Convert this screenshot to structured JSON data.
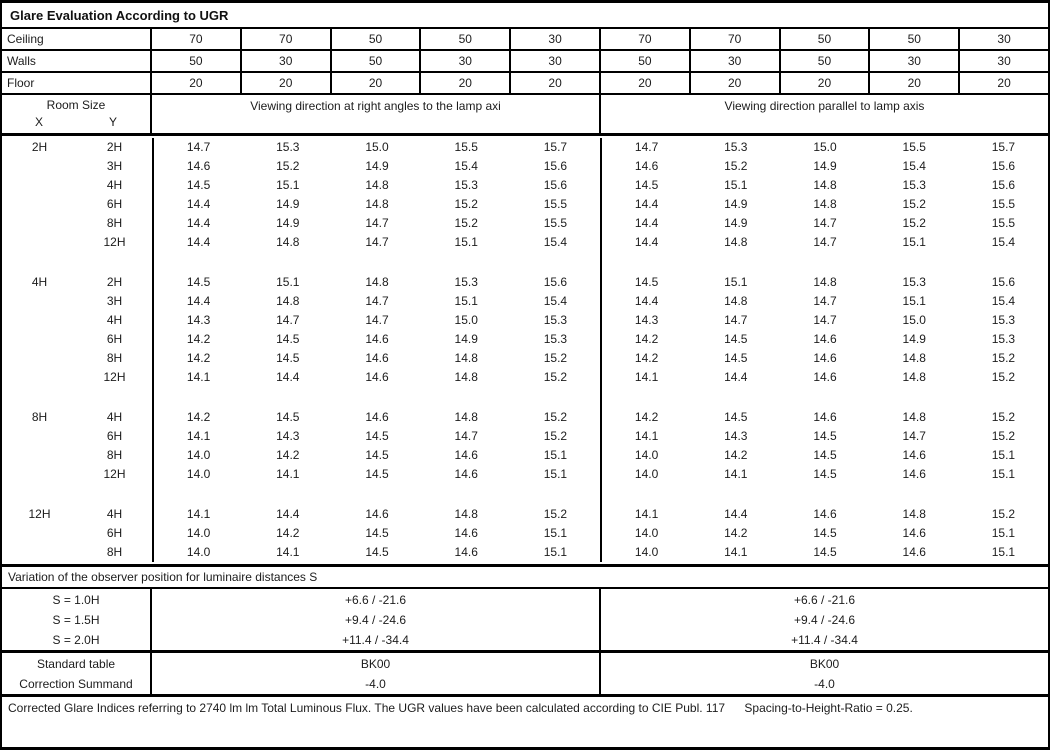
{
  "title": "Glare Evaluation According to UGR",
  "surface_rows": [
    {
      "label": "Ceiling",
      "values": [
        "70",
        "70",
        "50",
        "50",
        "30",
        "70",
        "70",
        "50",
        "50",
        "30"
      ]
    },
    {
      "label": "Walls",
      "values": [
        "50",
        "30",
        "50",
        "30",
        "30",
        "50",
        "30",
        "50",
        "30",
        "30"
      ]
    },
    {
      "label": "Floor",
      "values": [
        "20",
        "20",
        "20",
        "20",
        "20",
        "20",
        "20",
        "20",
        "20",
        "20"
      ]
    }
  ],
  "header": {
    "room_size": "Room Size",
    "x_label": "X",
    "y_label": "Y",
    "left_heading": "Viewing direction at right angles to the lamp axi",
    "right_heading": "Viewing direction parallel to lamp axis"
  },
  "ugr_groups": [
    {
      "x": "2H",
      "rows": [
        {
          "y": "2H",
          "left": [
            "14.7",
            "15.3",
            "15.0",
            "15.5",
            "15.7"
          ],
          "right": [
            "14.7",
            "15.3",
            "15.0",
            "15.5",
            "15.7"
          ]
        },
        {
          "y": "3H",
          "left": [
            "14.6",
            "15.2",
            "14.9",
            "15.4",
            "15.6"
          ],
          "right": [
            "14.6",
            "15.2",
            "14.9",
            "15.4",
            "15.6"
          ]
        },
        {
          "y": "4H",
          "left": [
            "14.5",
            "15.1",
            "14.8",
            "15.3",
            "15.6"
          ],
          "right": [
            "14.5",
            "15.1",
            "14.8",
            "15.3",
            "15.6"
          ]
        },
        {
          "y": "6H",
          "left": [
            "14.4",
            "14.9",
            "14.8",
            "15.2",
            "15.5"
          ],
          "right": [
            "14.4",
            "14.9",
            "14.8",
            "15.2",
            "15.5"
          ]
        },
        {
          "y": "8H",
          "left": [
            "14.4",
            "14.9",
            "14.7",
            "15.2",
            "15.5"
          ],
          "right": [
            "14.4",
            "14.9",
            "14.7",
            "15.2",
            "15.5"
          ]
        },
        {
          "y": "12H",
          "left": [
            "14.4",
            "14.8",
            "14.7",
            "15.1",
            "15.4"
          ],
          "right": [
            "14.4",
            "14.8",
            "14.7",
            "15.1",
            "15.4"
          ]
        }
      ]
    },
    {
      "x": "4H",
      "rows": [
        {
          "y": "2H",
          "left": [
            "14.5",
            "15.1",
            "14.8",
            "15.3",
            "15.6"
          ],
          "right": [
            "14.5",
            "15.1",
            "14.8",
            "15.3",
            "15.6"
          ]
        },
        {
          "y": "3H",
          "left": [
            "14.4",
            "14.8",
            "14.7",
            "15.1",
            "15.4"
          ],
          "right": [
            "14.4",
            "14.8",
            "14.7",
            "15.1",
            "15.4"
          ]
        },
        {
          "y": "4H",
          "left": [
            "14.3",
            "14.7",
            "14.7",
            "15.0",
            "15.3"
          ],
          "right": [
            "14.3",
            "14.7",
            "14.7",
            "15.0",
            "15.3"
          ]
        },
        {
          "y": "6H",
          "left": [
            "14.2",
            "14.5",
            "14.6",
            "14.9",
            "15.3"
          ],
          "right": [
            "14.2",
            "14.5",
            "14.6",
            "14.9",
            "15.3"
          ]
        },
        {
          "y": "8H",
          "left": [
            "14.2",
            "14.5",
            "14.6",
            "14.8",
            "15.2"
          ],
          "right": [
            "14.2",
            "14.5",
            "14.6",
            "14.8",
            "15.2"
          ]
        },
        {
          "y": "12H",
          "left": [
            "14.1",
            "14.4",
            "14.6",
            "14.8",
            "15.2"
          ],
          "right": [
            "14.1",
            "14.4",
            "14.6",
            "14.8",
            "15.2"
          ]
        }
      ]
    },
    {
      "x": "8H",
      "rows": [
        {
          "y": "4H",
          "left": [
            "14.2",
            "14.5",
            "14.6",
            "14.8",
            "15.2"
          ],
          "right": [
            "14.2",
            "14.5",
            "14.6",
            "14.8",
            "15.2"
          ]
        },
        {
          "y": "6H",
          "left": [
            "14.1",
            "14.3",
            "14.5",
            "14.7",
            "15.2"
          ],
          "right": [
            "14.1",
            "14.3",
            "14.5",
            "14.7",
            "15.2"
          ]
        },
        {
          "y": "8H",
          "left": [
            "14.0",
            "14.2",
            "14.5",
            "14.6",
            "15.1"
          ],
          "right": [
            "14.0",
            "14.2",
            "14.5",
            "14.6",
            "15.1"
          ]
        },
        {
          "y": "12H",
          "left": [
            "14.0",
            "14.1",
            "14.5",
            "14.6",
            "15.1"
          ],
          "right": [
            "14.0",
            "14.1",
            "14.5",
            "14.6",
            "15.1"
          ]
        }
      ]
    },
    {
      "x": "12H",
      "rows": [
        {
          "y": "4H",
          "left": [
            "14.1",
            "14.4",
            "14.6",
            "14.8",
            "15.2"
          ],
          "right": [
            "14.1",
            "14.4",
            "14.6",
            "14.8",
            "15.2"
          ]
        },
        {
          "y": "6H",
          "left": [
            "14.0",
            "14.2",
            "14.5",
            "14.6",
            "15.1"
          ],
          "right": [
            "14.0",
            "14.2",
            "14.5",
            "14.6",
            "15.1"
          ]
        },
        {
          "y": "8H",
          "left": [
            "14.0",
            "14.1",
            "14.5",
            "14.6",
            "15.1"
          ],
          "right": [
            "14.0",
            "14.1",
            "14.5",
            "14.6",
            "15.1"
          ]
        }
      ]
    }
  ],
  "variation_heading": "Variation of the observer position for luminaire distances S",
  "variation_rows": [
    {
      "label": "S = 1.0H",
      "left": "+6.6 / -21.6",
      "right": "+6.6 / -21.6"
    },
    {
      "label": "S = 1.5H",
      "left": "+9.4 / -24.6",
      "right": "+9.4 / -24.6"
    },
    {
      "label": "S = 2.0H",
      "left": "+11.4 / -34.4",
      "right": "+11.4 / -34.4"
    }
  ],
  "summary_rows": [
    {
      "label": "Standard table",
      "left": "BK00",
      "right": "BK00"
    },
    {
      "label": "Correction Summand",
      "left": "-4.0",
      "right": "-4.0"
    }
  ],
  "footer": {
    "main": "Corrected Glare Indices referring to 2740 lm lm Total Luminous Flux. The UGR values have been calculated according to CIE Publ. 117",
    "ratio": "Spacing-to-Height-Ratio = 0.25."
  }
}
